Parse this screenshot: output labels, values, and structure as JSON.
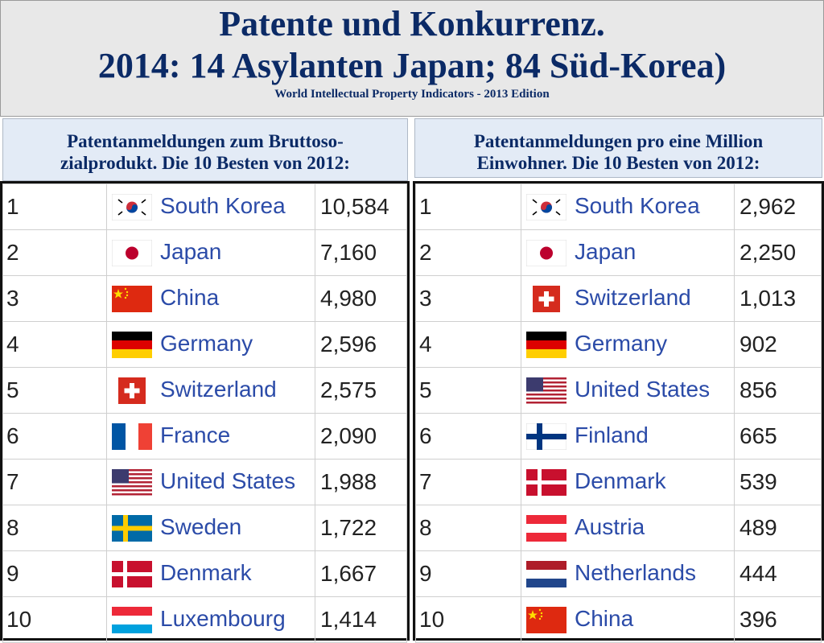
{
  "title_line1": "Patente und Konkurrenz.",
  "title_line2": "2014: 14 Asylanten Japan; 84 Süd-Korea)",
  "source": "World Intellectual Property Indicators - 2013 Edition",
  "left": {
    "caption_line1": "Patentanmeldungen zum Bruttoso-",
    "caption_line2": "zialprodukt. Die 10 Besten von 2012:",
    "rows": [
      {
        "rank": "1",
        "country": "South Korea",
        "flag": "south-korea",
        "value": "10,584"
      },
      {
        "rank": "2",
        "country": "Japan",
        "flag": "japan",
        "value": "7,160"
      },
      {
        "rank": "3",
        "country": "China",
        "flag": "china",
        "value": "4,980"
      },
      {
        "rank": "4",
        "country": "Germany",
        "flag": "germany",
        "value": "2,596"
      },
      {
        "rank": "5",
        "country": "Switzerland",
        "flag": "switzerland",
        "value": "2,575"
      },
      {
        "rank": "6",
        "country": "France",
        "flag": "france",
        "value": "2,090"
      },
      {
        "rank": "7",
        "country": "United States",
        "flag": "united-states",
        "value": "1,988"
      },
      {
        "rank": "8",
        "country": "Sweden",
        "flag": "sweden",
        "value": "1,722"
      },
      {
        "rank": "9",
        "country": "Denmark",
        "flag": "denmark",
        "value": "1,667"
      },
      {
        "rank": "10",
        "country": "Luxembourg",
        "flag": "luxembourg",
        "value": "1,414"
      }
    ]
  },
  "right": {
    "caption_line1": "Patentanmeldungen pro eine Million",
    "caption_line2": "Einwohner. Die 10 Besten von 2012:",
    "rows": [
      {
        "rank": "1",
        "country": "South Korea",
        "flag": "south-korea",
        "value": "2,962"
      },
      {
        "rank": "2",
        "country": "Japan",
        "flag": "japan",
        "value": "2,250"
      },
      {
        "rank": "3",
        "country": "Switzerland",
        "flag": "switzerland",
        "value": "1,013"
      },
      {
        "rank": "4",
        "country": "Germany",
        "flag": "germany",
        "value": "902"
      },
      {
        "rank": "5",
        "country": "United States",
        "flag": "united-states",
        "value": "856"
      },
      {
        "rank": "6",
        "country": "Finland",
        "flag": "finland",
        "value": "665"
      },
      {
        "rank": "7",
        "country": "Denmark",
        "flag": "denmark",
        "value": "539"
      },
      {
        "rank": "8",
        "country": "Austria",
        "flag": "austria",
        "value": "489"
      },
      {
        "rank": "9",
        "country": "Netherlands",
        "flag": "netherlands",
        "value": "444"
      },
      {
        "rank": "10",
        "country": "China",
        "flag": "china",
        "value": "396"
      }
    ]
  }
}
